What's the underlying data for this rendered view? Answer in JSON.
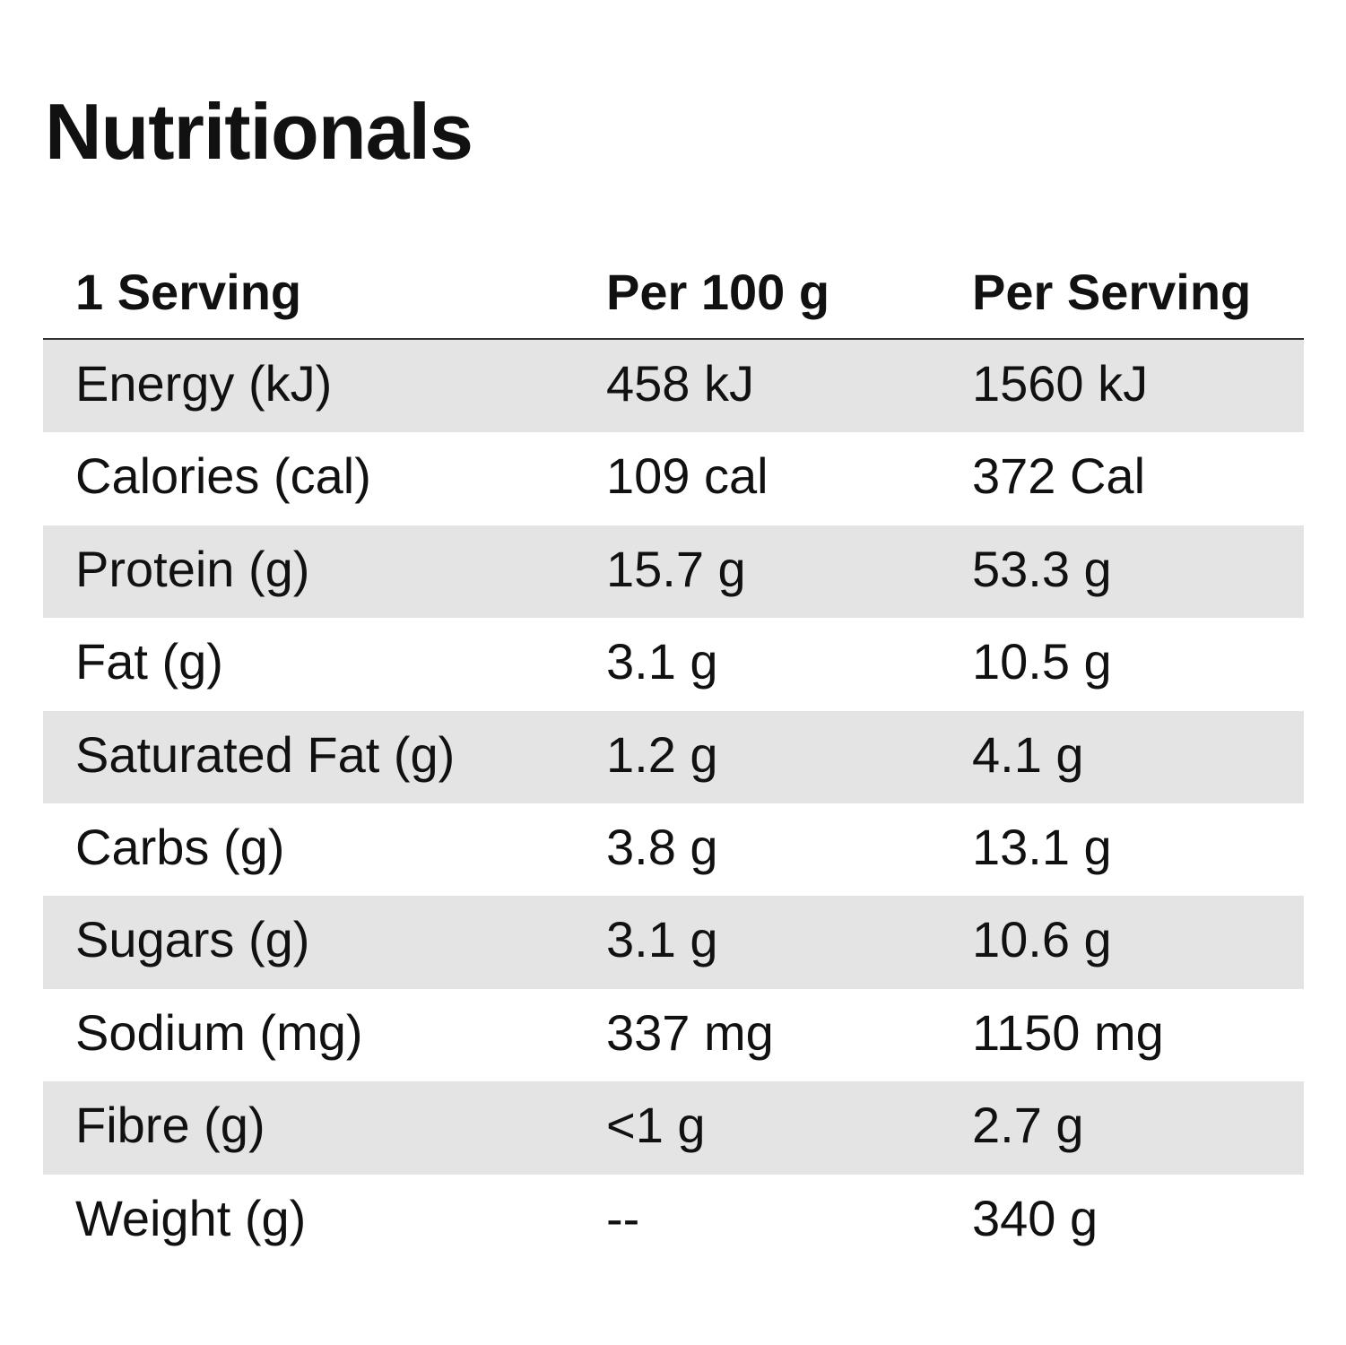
{
  "title": "Nutritionals",
  "table": {
    "headers": [
      "1 Serving",
      "Per 100 g",
      "Per Serving"
    ],
    "rows": [
      {
        "label": "Energy (kJ)",
        "per_100g": "458 kJ",
        "per_serving": "1560 kJ"
      },
      {
        "label": "Calories (cal)",
        "per_100g": "109 cal",
        "per_serving": "372 Cal"
      },
      {
        "label": "Protein (g)",
        "per_100g": "15.7 g",
        "per_serving": "53.3 g"
      },
      {
        "label": "Fat (g)",
        "per_100g": "3.1 g",
        "per_serving": "10.5 g"
      },
      {
        "label": "Saturated Fat (g)",
        "per_100g": "1.2 g",
        "per_serving": "4.1 g"
      },
      {
        "label": "Carbs (g)",
        "per_100g": "3.8 g",
        "per_serving": "13.1 g"
      },
      {
        "label": "Sugars (g)",
        "per_100g": "3.1 g",
        "per_serving": "10.6 g"
      },
      {
        "label": "Sodium (mg)",
        "per_100g": "337 mg",
        "per_serving": "1150 mg"
      },
      {
        "label": "Fibre (g)",
        "per_100g": "<1 g",
        "per_serving": "2.7 g"
      },
      {
        "label": "Weight (g)",
        "per_100g": "--",
        "per_serving": "340 g"
      }
    ]
  },
  "colors": {
    "text": "#111111",
    "row_shade": "#e4e4e4",
    "header_rule": "#333333",
    "background": "#ffffff"
  }
}
